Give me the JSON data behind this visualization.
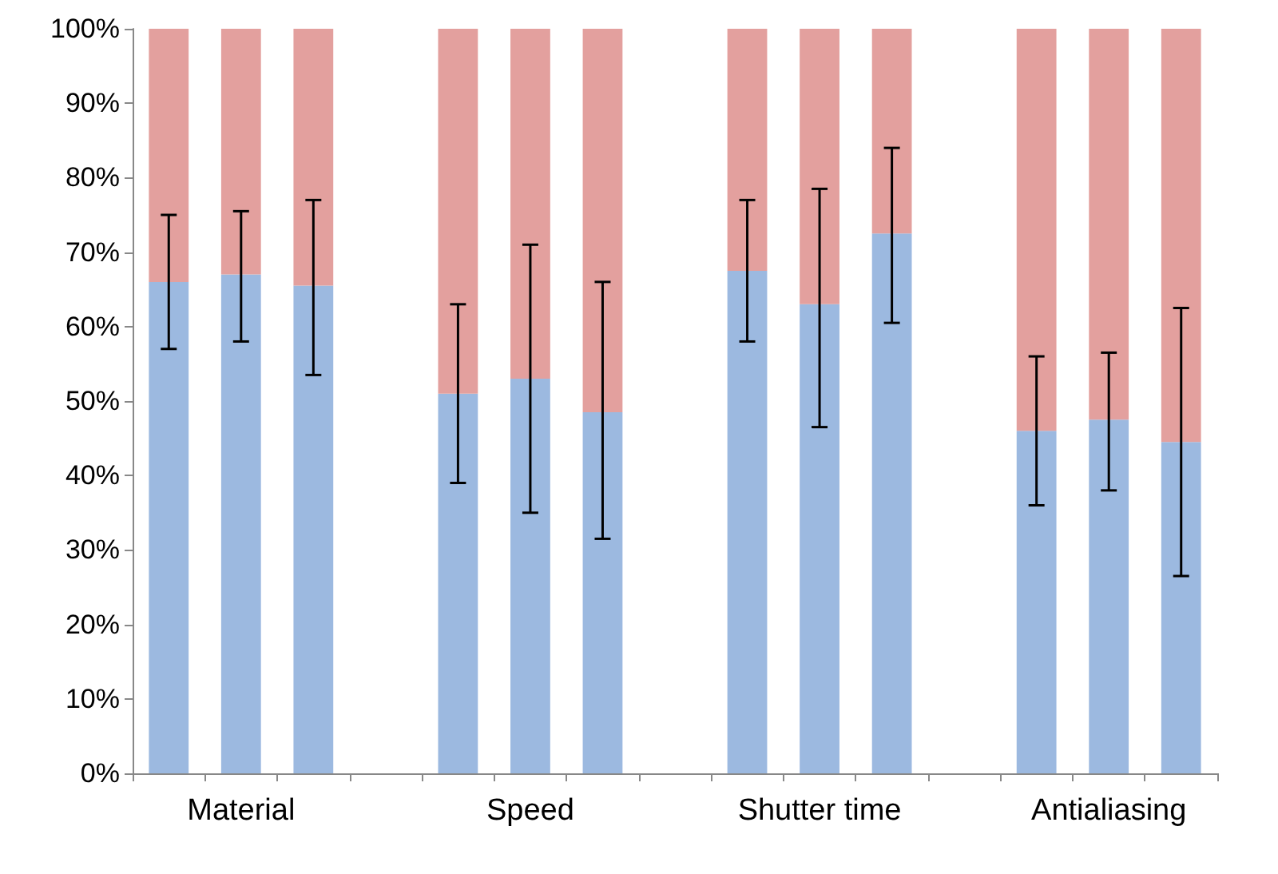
{
  "chart_data": {
    "type": "bar",
    "stacked": true,
    "categories": [
      null,
      "Material",
      null,
      null,
      null,
      "Speed",
      null,
      null,
      null,
      "Shutter time",
      null,
      null,
      null,
      "Antialiasing",
      null
    ],
    "series": [
      {
        "color": "#9cb9e0",
        "values": [
          66,
          67,
          65.5,
          null,
          51,
          53,
          48.5,
          null,
          67.5,
          63,
          72.5,
          null,
          46,
          47.5,
          44.5
        ],
        "errors": [
          [
            57,
            75
          ],
          [
            58,
            75.5
          ],
          [
            53.5,
            77
          ],
          null,
          [
            39,
            63
          ],
          [
            35,
            71
          ],
          [
            31.5,
            66
          ],
          null,
          [
            58,
            77
          ],
          [
            46.5,
            78.5
          ],
          [
            60.5,
            84
          ],
          null,
          [
            36,
            56
          ],
          [
            38,
            56.5
          ],
          [
            26.5,
            62.5
          ]
        ]
      },
      {
        "color": "#e3a09e",
        "values": [
          34,
          33,
          34.5,
          null,
          49,
          47,
          51.5,
          null,
          32.5,
          37,
          27.5,
          null,
          54,
          52.5,
          55.5
        ]
      }
    ],
    "ylim": [
      0,
      100
    ],
    "yticks": [
      {
        "value": 0,
        "label": "0%"
      },
      {
        "value": 10,
        "label": "10%"
      },
      {
        "value": 20,
        "label": "20%"
      },
      {
        "value": 30,
        "label": "30%"
      },
      {
        "value": 40,
        "label": "40%"
      },
      {
        "value": 50,
        "label": "50%"
      },
      {
        "value": 60,
        "label": "60%"
      },
      {
        "value": 70,
        "label": "70%"
      },
      {
        "value": 80,
        "label": "80%"
      },
      {
        "value": 90,
        "label": "90%"
      },
      {
        "value": 100,
        "label": "100%"
      }
    ],
    "grid": false
  }
}
